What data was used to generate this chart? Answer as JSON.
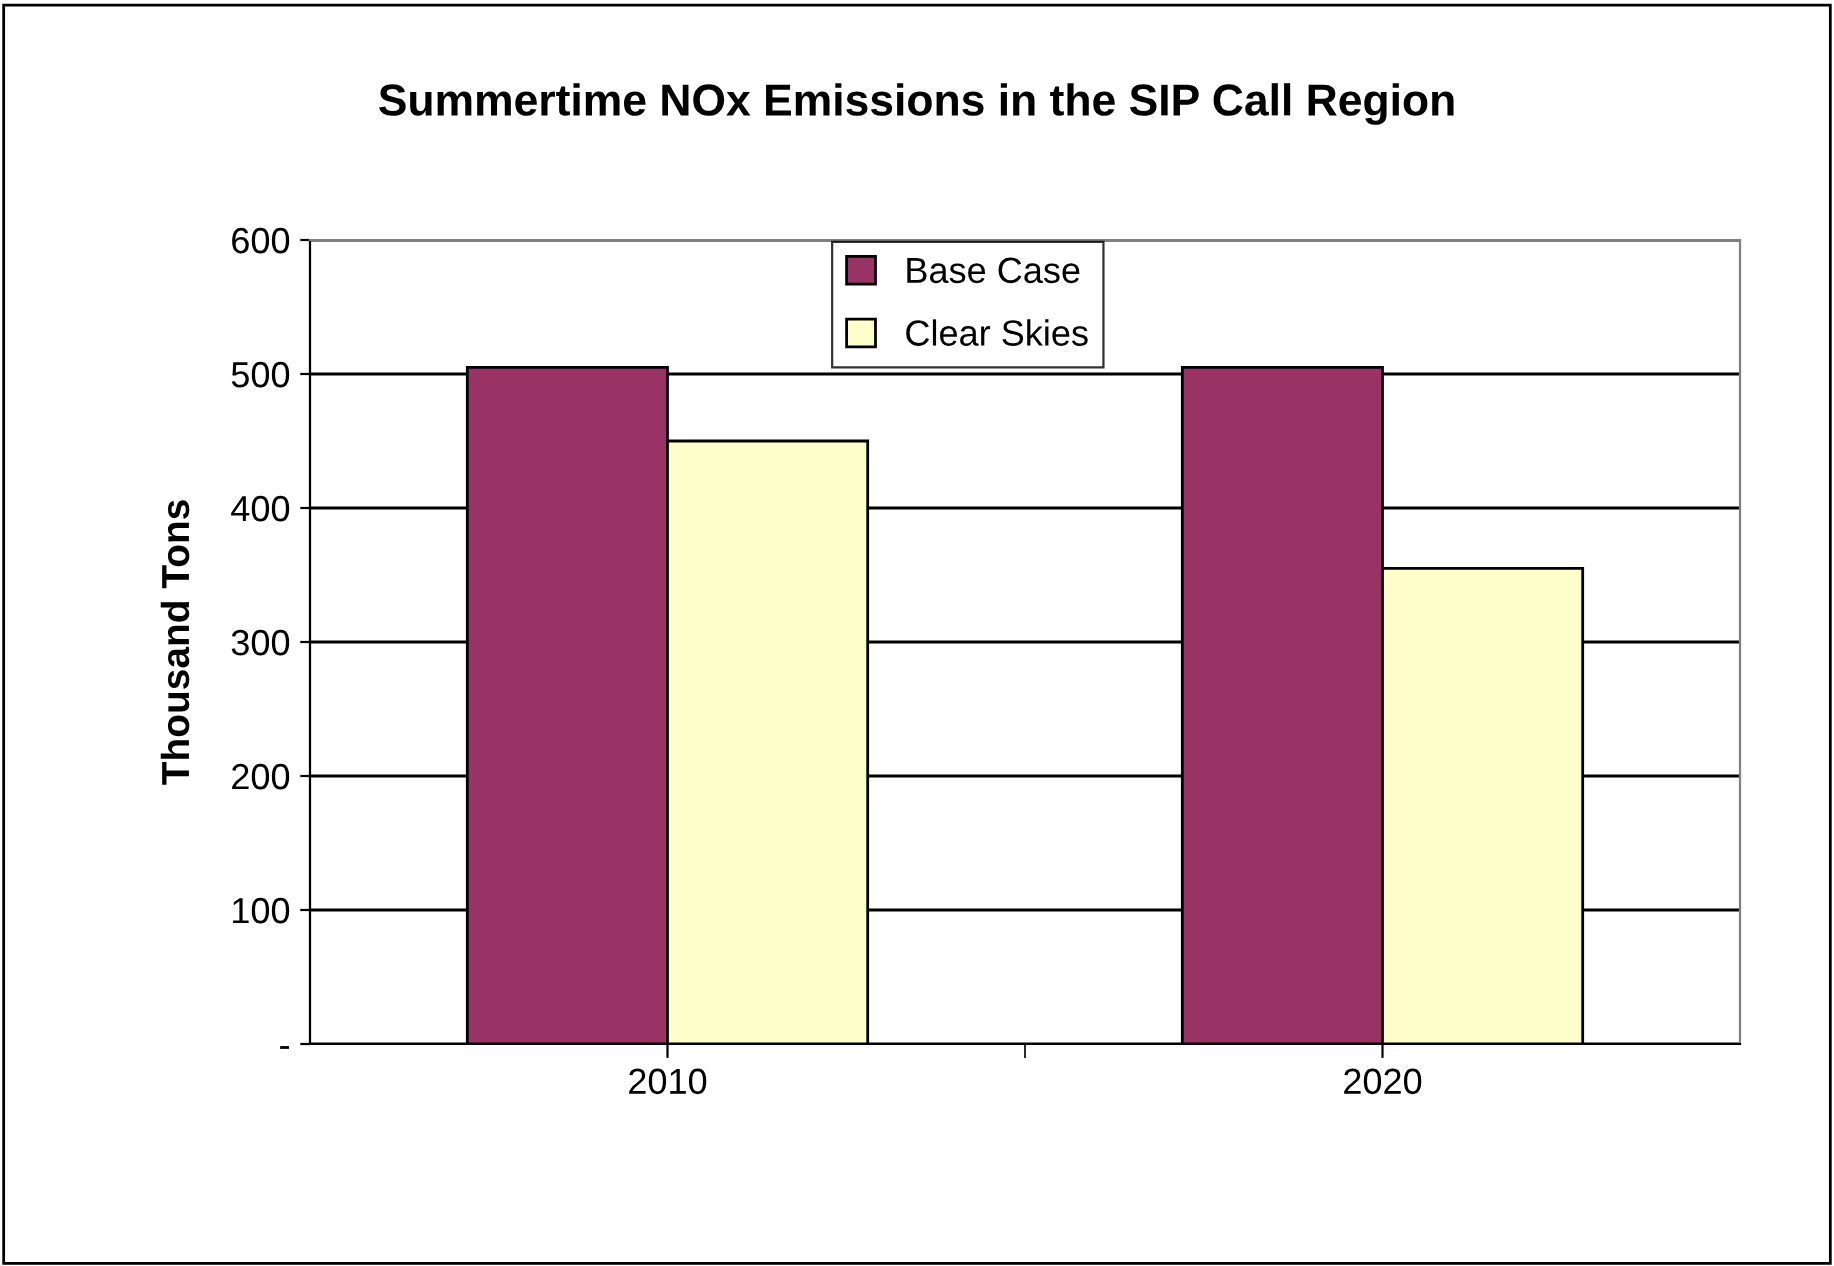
{
  "chart_data": {
    "type": "bar",
    "title": "Summertime NOx Emissions in the SIP Call Region",
    "ylabel": "Thousand Tons",
    "categories": [
      "2010",
      "2020"
    ],
    "series": [
      {
        "name": "Base Case",
        "color": "#993366",
        "values": [
          505,
          505
        ]
      },
      {
        "name": "Clear Skies",
        "color": "#ffffcc",
        "values": [
          450,
          355
        ]
      }
    ],
    "ylim": [
      0,
      600
    ],
    "yticks": [
      {
        "value": 0,
        "label": "-"
      },
      100,
      200,
      300,
      400,
      500,
      600
    ],
    "grid": "y",
    "legend": "top"
  }
}
